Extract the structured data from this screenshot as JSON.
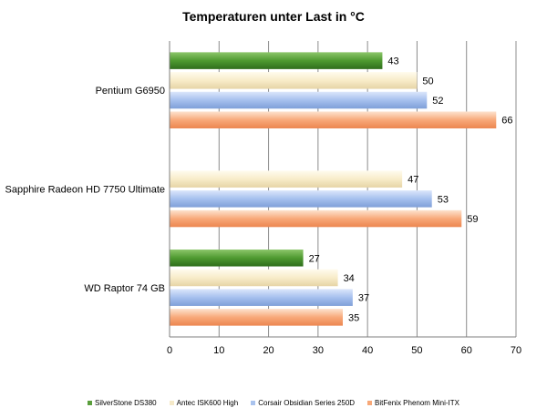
{
  "chart_data": {
    "type": "bar",
    "orientation": "horizontal",
    "title": "Temperaturen  unter Last in °C",
    "categories": [
      "Pentium G6950",
      "Sapphire Radeon HD 7750 Ultimate",
      "WD Raptor 74 GB"
    ],
    "series": [
      {
        "name": "SilverStone DS380",
        "values": [
          43,
          null,
          27
        ],
        "color": "#5a9e3c"
      },
      {
        "name": "Antec ISK600 High",
        "values": [
          50,
          47,
          34
        ],
        "color": "#f5e9c8"
      },
      {
        "name": "Corsair Obsidian Series 250D",
        "values": [
          52,
          53,
          37
        ],
        "color": "#a9c3ee"
      },
      {
        "name": "BitFenix Phenom  Mini-ITX",
        "values": [
          66,
          59,
          35
        ],
        "color": "#f7a878"
      }
    ],
    "xlim": [
      0,
      70
    ],
    "xticks": [
      "0",
      "10",
      "20",
      "30",
      "40",
      "50",
      "60",
      "70"
    ],
    "grid": "vertical",
    "legend": "bottom"
  }
}
